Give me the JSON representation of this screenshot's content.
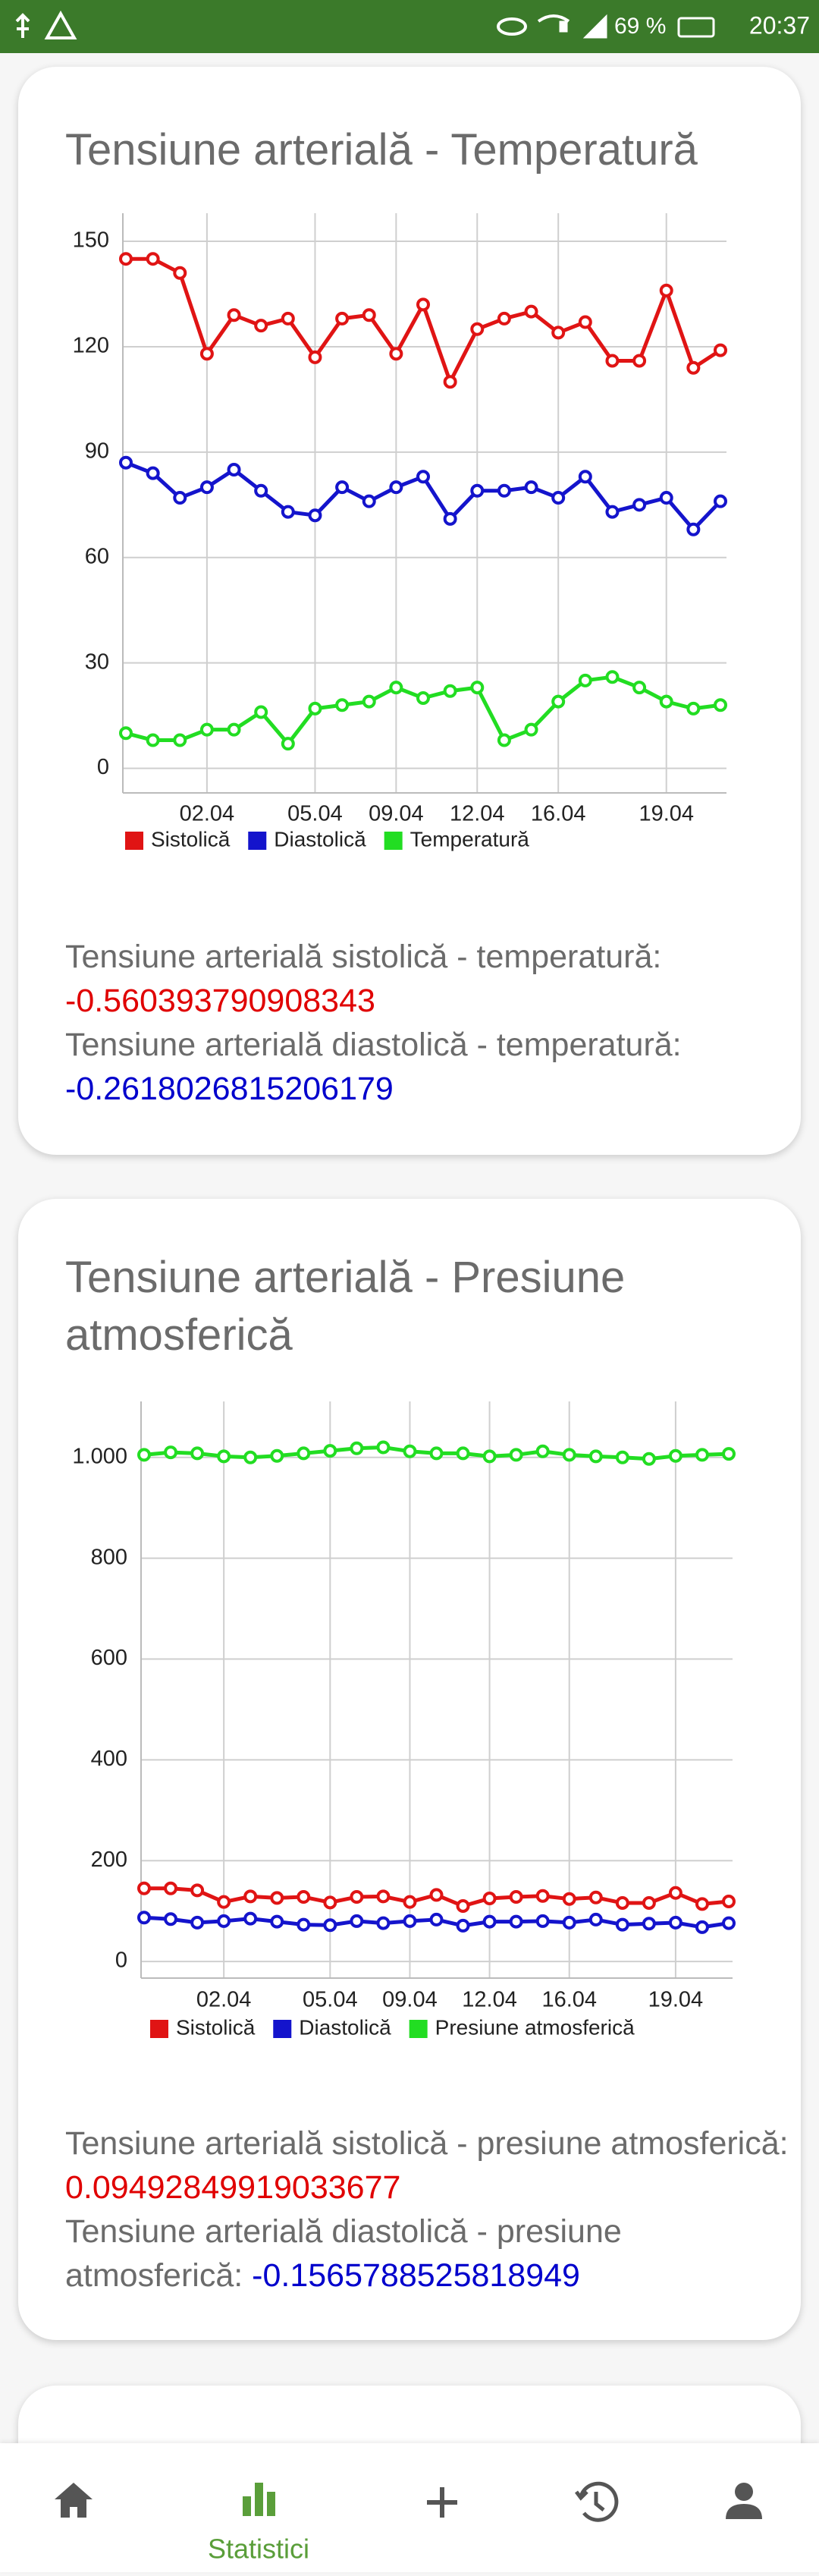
{
  "status_bar": {
    "battery": "69 %",
    "time": "20:37"
  },
  "chart_data": [
    {
      "type": "line",
      "title": "Tensiune arterială - Temperatură",
      "categories": [
        null,
        null,
        null,
        "02.04",
        null,
        null,
        null,
        "05.04",
        null,
        null,
        "09.04",
        null,
        null,
        "12.04",
        null,
        null,
        "16.04",
        null,
        null,
        null,
        "19.04",
        null,
        null
      ],
      "series": [
        {
          "name": "Sistolică",
          "color": "#e01414",
          "values": [
            145,
            145,
            141,
            118,
            129,
            126,
            128,
            117,
            128,
            129,
            118,
            132,
            110,
            125,
            128,
            130,
            124,
            127,
            116,
            116,
            136,
            114,
            119
          ]
        },
        {
          "name": "Diastolică",
          "color": "#1414cc",
          "values": [
            87,
            84,
            77,
            80,
            85,
            79,
            73,
            72,
            80,
            76,
            80,
            83,
            71,
            79,
            79,
            80,
            77,
            83,
            73,
            75,
            77,
            68,
            76
          ]
        },
        {
          "name": "Temperatură",
          "color": "#22dd22",
          "values": [
            10,
            8,
            8,
            11,
            11,
            16,
            7,
            17,
            18,
            19,
            23,
            20,
            22,
            23,
            8,
            11,
            19,
            25,
            26,
            23,
            19,
            17,
            18
          ]
        }
      ],
      "ylim": [
        -7,
        158
      ],
      "yticks": [
        0,
        30,
        60,
        90,
        120,
        150
      ],
      "grid": true
    },
    {
      "type": "line",
      "title": "Tensiune arterială - Presiune atmosferică",
      "categories": [
        null,
        null,
        null,
        "02.04",
        null,
        null,
        null,
        "05.04",
        null,
        null,
        "09.04",
        null,
        null,
        "12.04",
        null,
        null,
        "16.04",
        null,
        null,
        null,
        "19.04",
        null,
        null
      ],
      "series": [
        {
          "name": "Sistolică",
          "color": "#e01414",
          "values": [
            145,
            145,
            141,
            118,
            129,
            126,
            128,
            117,
            128,
            129,
            118,
            132,
            110,
            125,
            128,
            130,
            124,
            127,
            116,
            116,
            136,
            114,
            119
          ]
        },
        {
          "name": "Diastolică",
          "color": "#1414cc",
          "values": [
            87,
            84,
            77,
            80,
            85,
            79,
            73,
            72,
            80,
            76,
            80,
            83,
            71,
            79,
            79,
            80,
            77,
            83,
            73,
            75,
            77,
            68,
            76
          ]
        },
        {
          "name": "Presiune atmosferică",
          "color": "#22dd22",
          "values": [
            1005,
            1010,
            1008,
            1002,
            1000,
            1003,
            1008,
            1013,
            1018,
            1020,
            1012,
            1008,
            1008,
            1002,
            1005,
            1012,
            1005,
            1002,
            1000,
            997,
            1003,
            1005,
            1007
          ]
        }
      ],
      "ylim": [
        -33,
        1111
      ],
      "yticks": [
        0,
        200,
        400,
        600,
        800,
        {
          "value": 1000,
          "label": "1.000"
        }
      ],
      "grid": true
    }
  ],
  "correlations": [
    [
      {
        "label": "Tensiune arterială sistolică - temperatură:",
        "value": "-0.560393790908343"
      },
      {
        "label": "Tensiune arterială diastolică - temperatură:",
        "value": "-0.2618026815206179"
      }
    ],
    [
      {
        "label": "Tensiune arterială sistolică - presiune atmosferică:",
        "value": "0.09492849919033677"
      },
      {
        "label": "Tensiune arterială diastolică - presiune atmosferică:",
        "value": "-0.1565788525818949"
      }
    ]
  ],
  "nav": {
    "active_label": "Statistici"
  }
}
